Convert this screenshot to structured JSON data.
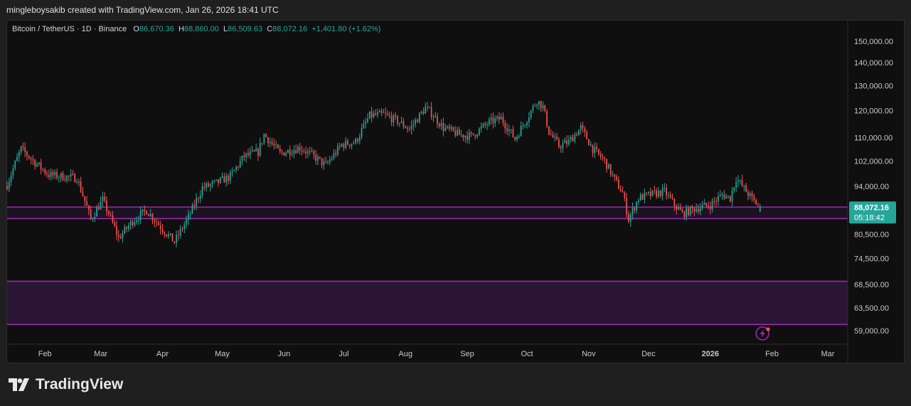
{
  "header": {
    "attribution": "mingleboysakib created with TradingView.com, Jan 26, 2026 18:41 UTC"
  },
  "legend": {
    "symbol": "Bitcoin / TetherUS · 1D · Binance",
    "open_label": "O",
    "open": "86,670.36",
    "high_label": "H",
    "high": "88,860.00",
    "low_label": "L",
    "low": "86,509.63",
    "close_label": "C",
    "close": "88,072.16",
    "change": "+1,401.80 (+1.62%)"
  },
  "price_badge": {
    "price": "88,072.16",
    "countdown": "05:18:42"
  },
  "footer": {
    "brand": "TradingView"
  },
  "colors": {
    "up": "#26a69a",
    "down": "#ef5350",
    "zone": "#9c27b0",
    "zone_fill": "#2a1536",
    "badge": "#26a69a"
  },
  "chart_data": {
    "type": "candlestick",
    "y_scale": "log",
    "ylim": [
      56500,
      160000
    ],
    "y_ticks": [
      150000,
      140000,
      130000,
      120000,
      110000,
      102000,
      94000,
      80500,
      74500,
      68500,
      63500,
      59000
    ],
    "y_tick_labels": [
      "150,000.00",
      "140,000.00",
      "130,000.00",
      "120,000.00",
      "110,000.00",
      "102,000.00",
      "94,000.00",
      "80,500.00",
      "74,500.00",
      "68,500.00",
      "63,500.00",
      "59,000.00"
    ],
    "x_range": [
      "2025-01-13",
      "2026-03-11"
    ],
    "x_labels": [
      {
        "date": "2025-02-01",
        "label": "Feb"
      },
      {
        "date": "2025-03-01",
        "label": "Mar"
      },
      {
        "date": "2025-04-01",
        "label": "Apr"
      },
      {
        "date": "2025-05-01",
        "label": "May"
      },
      {
        "date": "2025-06-01",
        "label": "Jun"
      },
      {
        "date": "2025-07-01",
        "label": "Jul"
      },
      {
        "date": "2025-08-01",
        "label": "Aug"
      },
      {
        "date": "2025-09-01",
        "label": "Sep"
      },
      {
        "date": "2025-10-01",
        "label": "Oct"
      },
      {
        "date": "2025-11-01",
        "label": "Nov"
      },
      {
        "date": "2025-12-01",
        "label": "Dec"
      },
      {
        "date": "2026-01-01",
        "label": "2026"
      },
      {
        "date": "2026-02-01",
        "label": "Feb"
      },
      {
        "date": "2026-03-01",
        "label": "Mar"
      }
    ],
    "zones": [
      {
        "from": 84700,
        "to": 87900
      },
      {
        "from": 60200,
        "to": 69200
      }
    ],
    "last_price": 88072.16,
    "close_path": [
      [
        "2025-01-13",
        94500
      ],
      [
        "2025-01-20",
        106000
      ],
      [
        "2025-01-27",
        101500
      ],
      [
        "2025-02-03",
        97500
      ],
      [
        "2025-02-10",
        97000
      ],
      [
        "2025-02-17",
        96500
      ],
      [
        "2025-02-24",
        84500
      ],
      [
        "2025-03-02",
        90000
      ],
      [
        "2025-03-10",
        79500
      ],
      [
        "2025-03-17",
        84000
      ],
      [
        "2025-03-24",
        87000
      ],
      [
        "2025-03-31",
        82500
      ],
      [
        "2025-04-07",
        78500
      ],
      [
        "2025-04-14",
        85000
      ],
      [
        "2025-04-21",
        93500
      ],
      [
        "2025-04-28",
        95000
      ],
      [
        "2025-05-05",
        97000
      ],
      [
        "2025-05-12",
        103500
      ],
      [
        "2025-05-19",
        105000
      ],
      [
        "2025-05-22",
        111000
      ],
      [
        "2025-05-30",
        104500
      ],
      [
        "2025-06-09",
        106500
      ],
      [
        "2025-06-16",
        103500
      ],
      [
        "2025-06-22",
        100500
      ],
      [
        "2025-06-30",
        107500
      ],
      [
        "2025-07-07",
        108500
      ],
      [
        "2025-07-14",
        118000
      ],
      [
        "2025-07-21",
        118500
      ],
      [
        "2025-07-28",
        116000
      ],
      [
        "2025-08-03",
        113000
      ],
      [
        "2025-08-11",
        121000
      ],
      [
        "2025-08-14",
        119000
      ],
      [
        "2025-08-20",
        113500
      ],
      [
        "2025-08-28",
        111000
      ],
      [
        "2025-09-03",
        110500
      ],
      [
        "2025-09-12",
        115500
      ],
      [
        "2025-09-18",
        117000
      ],
      [
        "2025-09-25",
        109500
      ],
      [
        "2025-10-01",
        117000
      ],
      [
        "2025-10-06",
        124000
      ],
      [
        "2025-10-09",
        121500
      ],
      [
        "2025-10-12",
        112000
      ],
      [
        "2025-10-17",
        107000
      ],
      [
        "2025-10-22",
        108500
      ],
      [
        "2025-10-28",
        113500
      ],
      [
        "2025-11-03",
        106000
      ],
      [
        "2025-11-09",
        102000
      ],
      [
        "2025-11-14",
        96000
      ],
      [
        "2025-11-18",
        92000
      ],
      [
        "2025-11-21",
        84500
      ],
      [
        "2025-11-26",
        90500
      ],
      [
        "2025-12-02",
        91500
      ],
      [
        "2025-12-09",
        92500
      ],
      [
        "2025-12-14",
        88500
      ],
      [
        "2025-12-18",
        86000
      ],
      [
        "2025-12-24",
        87500
      ],
      [
        "2026-01-01",
        88500
      ],
      [
        "2026-01-07",
        91500
      ],
      [
        "2026-01-11",
        90500
      ],
      [
        "2026-01-14",
        96500
      ],
      [
        "2026-01-19",
        92500
      ],
      [
        "2026-01-23",
        89500
      ],
      [
        "2026-01-26",
        88072.16
      ]
    ]
  }
}
